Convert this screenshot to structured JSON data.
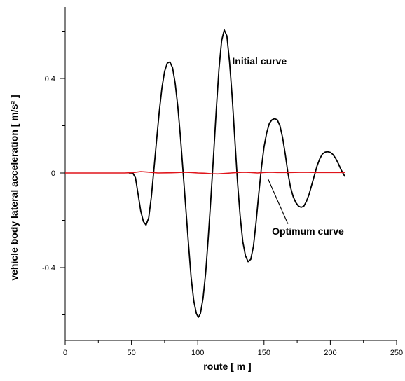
{
  "chart_data": {
    "type": "line",
    "title": "",
    "xlabel": "route [ m ]",
    "ylabel": "vehicle body lateral acceleration [ m/s² ]",
    "xlim": [
      0,
      250
    ],
    "ylim": [
      -0.7,
      0.7
    ],
    "x_ticks": [
      0,
      50,
      100,
      150,
      200,
      250
    ],
    "x_tick_labels": [
      "0",
      "50",
      "100",
      "150",
      "200",
      "250"
    ],
    "y_ticks": [
      -0.4,
      0,
      0.4
    ],
    "y_tick_labels": [
      "-0.4",
      "0",
      "0.4"
    ],
    "grid": false,
    "legend": "none",
    "annotations": [
      {
        "text": "Initial curve",
        "series": "initial"
      },
      {
        "text": "Optimum curve",
        "series": "optimum"
      }
    ],
    "series": [
      {
        "id": "initial",
        "color": "#000000",
        "points": [
          [
            48,
            0
          ],
          [
            51,
            0
          ],
          [
            53,
            -0.02
          ],
          [
            55,
            -0.09
          ],
          [
            57,
            -0.16
          ],
          [
            59,
            -0.205
          ],
          [
            61,
            -0.22
          ],
          [
            63,
            -0.19
          ],
          [
            65,
            -0.1
          ],
          [
            67,
            0.02
          ],
          [
            69,
            0.14
          ],
          [
            71,
            0.26
          ],
          [
            73,
            0.36
          ],
          [
            75,
            0.43
          ],
          [
            77,
            0.465
          ],
          [
            79,
            0.47
          ],
          [
            81,
            0.445
          ],
          [
            83,
            0.38
          ],
          [
            85,
            0.28
          ],
          [
            87,
            0.15
          ],
          [
            89,
            0.0
          ],
          [
            91,
            -0.15
          ],
          [
            93,
            -0.3
          ],
          [
            95,
            -0.44
          ],
          [
            97,
            -0.54
          ],
          [
            99,
            -0.595
          ],
          [
            100.5,
            -0.61
          ],
          [
            102,
            -0.595
          ],
          [
            104,
            -0.53
          ],
          [
            106,
            -0.42
          ],
          [
            108,
            -0.27
          ],
          [
            110,
            -0.1
          ],
          [
            112,
            0.08
          ],
          [
            114,
            0.27
          ],
          [
            116,
            0.44
          ],
          [
            118,
            0.56
          ],
          [
            120,
            0.605
          ],
          [
            122,
            0.58
          ],
          [
            124,
            0.47
          ],
          [
            126,
            0.32
          ],
          [
            128,
            0.14
          ],
          [
            130,
            -0.04
          ],
          [
            132,
            -0.18
          ],
          [
            134,
            -0.29
          ],
          [
            136,
            -0.35
          ],
          [
            138,
            -0.375
          ],
          [
            140,
            -0.365
          ],
          [
            142,
            -0.31
          ],
          [
            144,
            -0.21
          ],
          [
            146,
            -0.09
          ],
          [
            148,
            0.02
          ],
          [
            150,
            0.11
          ],
          [
            152,
            0.17
          ],
          [
            154,
            0.21
          ],
          [
            156,
            0.225
          ],
          [
            158,
            0.23
          ],
          [
            160,
            0.225
          ],
          [
            162,
            0.2
          ],
          [
            164,
            0.15
          ],
          [
            166,
            0.08
          ],
          [
            168,
            0.0
          ],
          [
            170,
            -0.06
          ],
          [
            172,
            -0.1
          ],
          [
            174,
            -0.125
          ],
          [
            176,
            -0.14
          ],
          [
            178,
            -0.145
          ],
          [
            180,
            -0.14
          ],
          [
            182,
            -0.12
          ],
          [
            184,
            -0.09
          ],
          [
            186,
            -0.05
          ],
          [
            188,
            -0.01
          ],
          [
            190,
            0.03
          ],
          [
            192,
            0.06
          ],
          [
            194,
            0.08
          ],
          [
            196,
            0.088
          ],
          [
            198,
            0.09
          ],
          [
            200,
            0.087
          ],
          [
            202,
            0.078
          ],
          [
            204,
            0.062
          ],
          [
            206,
            0.04
          ],
          [
            208,
            0.015
          ],
          [
            210,
            -0.005
          ],
          [
            211,
            -0.015
          ]
        ]
      },
      {
        "id": "optimum",
        "color": "#e0151b",
        "points": [
          [
            0,
            0
          ],
          [
            45,
            0
          ],
          [
            52,
            0.002
          ],
          [
            57,
            0.006
          ],
          [
            62,
            0.004
          ],
          [
            70,
            0.0
          ],
          [
            80,
            0.001
          ],
          [
            90,
            0.003
          ],
          [
            95,
            0.002
          ],
          [
            100,
            0.0
          ],
          [
            105,
            -0.001
          ],
          [
            110,
            -0.003
          ],
          [
            115,
            -0.004
          ],
          [
            120,
            -0.002
          ],
          [
            125,
            0.0
          ],
          [
            130,
            0.002
          ],
          [
            135,
            0.003
          ],
          [
            140,
            0.002
          ],
          [
            145,
            0.0
          ],
          [
            150,
            0.002
          ],
          [
            155,
            0.003
          ],
          [
            160,
            0.002
          ],
          [
            170,
            0.002
          ],
          [
            180,
            0.003
          ],
          [
            190,
            0.002
          ],
          [
            200,
            0.002
          ],
          [
            211,
            0.002
          ]
        ]
      }
    ]
  }
}
